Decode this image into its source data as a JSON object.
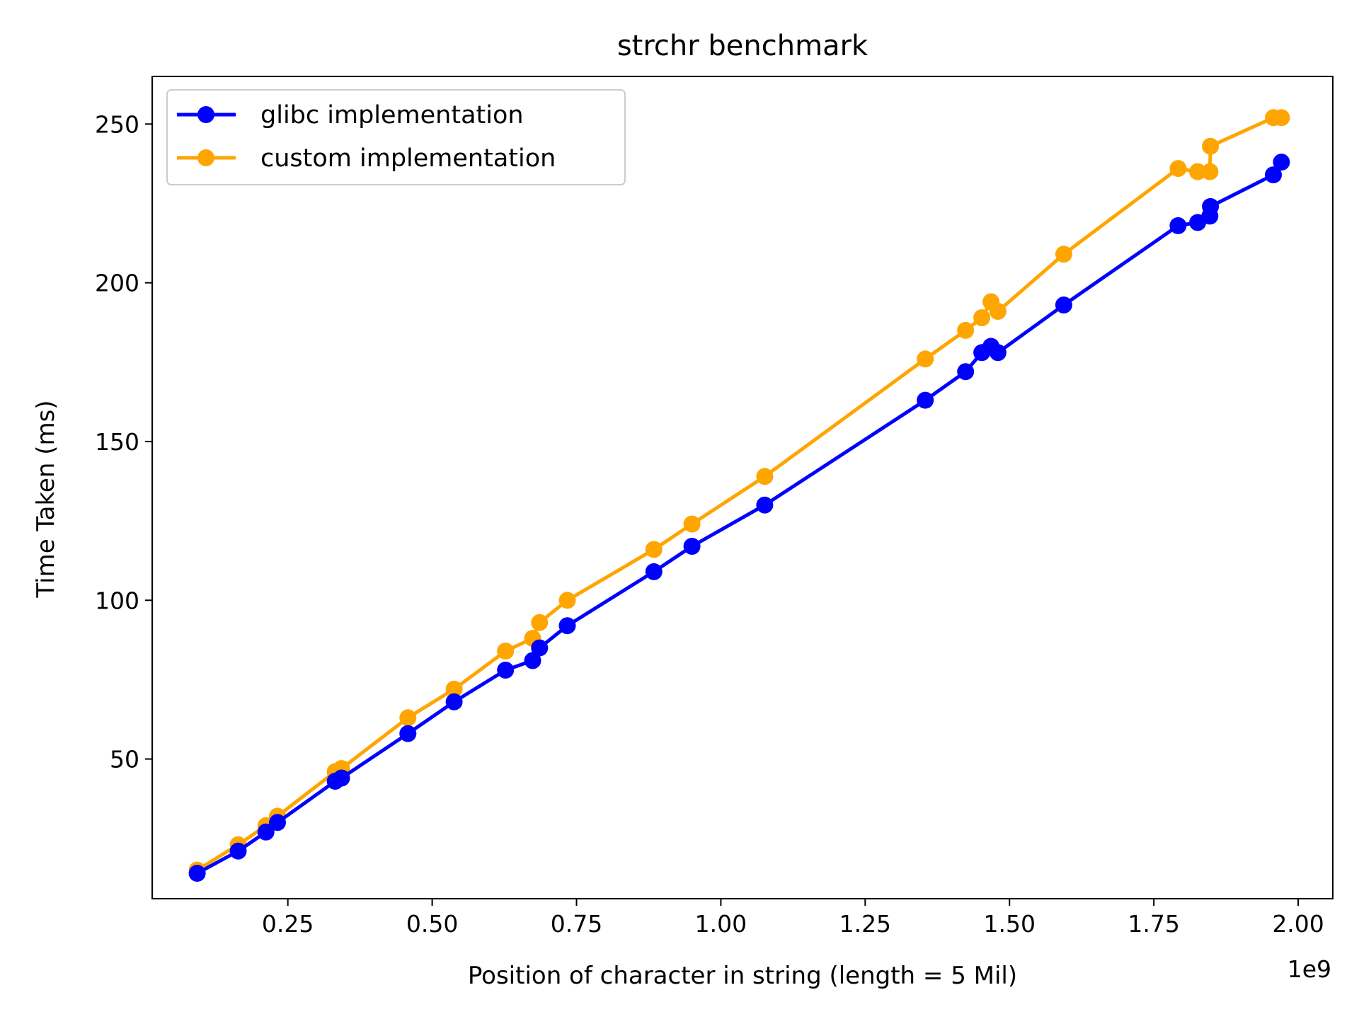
{
  "chart_data": {
    "type": "line",
    "title": "strchr benchmark",
    "xlabel": "Position of character in string (length = 5 Mil)",
    "ylabel": "Time Taken (ms)",
    "x_offset_label": "1e9",
    "x_scale": 1000000000,
    "xlim": [
      0.015,
      2.06
    ],
    "ylim": [
      6,
      265
    ],
    "x_ticks": [
      0.25,
      0.5,
      0.75,
      1.0,
      1.25,
      1.5,
      1.75,
      2.0
    ],
    "x_tick_labels": [
      "0.25",
      "0.50",
      "0.75",
      "1.00",
      "1.25",
      "1.50",
      "1.75",
      "2.00"
    ],
    "y_ticks": [
      50,
      100,
      150,
      200,
      250
    ],
    "y_tick_labels": [
      "50",
      "100",
      "150",
      "200",
      "250"
    ],
    "grid": false,
    "legend_position": "top-left",
    "x": [
      0.093,
      0.164,
      0.212,
      0.232,
      0.332,
      0.343,
      0.458,
      0.538,
      0.627,
      0.674,
      0.686,
      0.734,
      0.884,
      0.95,
      1.076,
      1.354,
      1.424,
      1.452,
      1.468,
      1.48,
      1.594,
      1.792,
      1.826,
      1.847,
      1.848,
      1.957,
      1.971
    ],
    "series": [
      {
        "name": "glibc implementation",
        "color": "#0000ff",
        "values": [
          14,
          21,
          27,
          30,
          43,
          44,
          58,
          68,
          78,
          81,
          85,
          92,
          109,
          117,
          130,
          163,
          172,
          178,
          180,
          178,
          193,
          218,
          219,
          221,
          224,
          234,
          238
        ]
      },
      {
        "name": "custom implementation",
        "color": "#ffa500",
        "values": [
          15,
          23,
          29,
          32,
          46,
          47,
          63,
          72,
          84,
          88,
          93,
          100,
          116,
          124,
          139,
          176,
          185,
          189,
          194,
          191,
          209,
          236,
          235,
          235,
          243,
          252,
          252
        ]
      }
    ]
  }
}
